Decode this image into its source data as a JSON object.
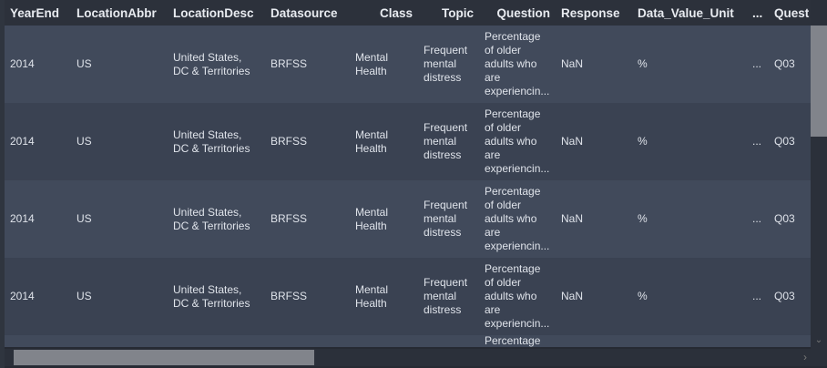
{
  "columns": [
    {
      "label": "YearEnd",
      "align": "left"
    },
    {
      "label": "LocationAbbr",
      "align": "left"
    },
    {
      "label": "LocationDesc",
      "align": "left"
    },
    {
      "label": "Datasource",
      "align": "left"
    },
    {
      "label": "Class",
      "align": "right"
    },
    {
      "label": "Topic",
      "align": "right"
    },
    {
      "label": "Question",
      "align": "right"
    },
    {
      "label": "Response",
      "align": "left"
    },
    {
      "label": "Data_Value_Unit",
      "align": "left"
    },
    {
      "label": "...",
      "align": "left"
    },
    {
      "label": "Quest",
      "align": "left"
    }
  ],
  "rows": [
    [
      "2014",
      "US",
      "United States, DC & Territories",
      "BRFSS",
      "Mental Health",
      "Frequent mental distress",
      "Percentage of older adults who are experiencin...",
      "NaN",
      "%",
      "...",
      "Q03"
    ],
    [
      "2014",
      "US",
      "United States, DC & Territories",
      "BRFSS",
      "Mental Health",
      "Frequent mental distress",
      "Percentage of older adults who are experiencin...",
      "NaN",
      "%",
      "...",
      "Q03"
    ],
    [
      "2014",
      "US",
      "United States, DC & Territories",
      "BRFSS",
      "Mental Health",
      "Frequent mental distress",
      "Percentage of older adults who are experiencin...",
      "NaN",
      "%",
      "...",
      "Q03"
    ],
    [
      "2014",
      "US",
      "United States, DC & Territories",
      "BRFSS",
      "Mental Health",
      "Frequent mental distress",
      "Percentage of older adults who are experiencin...",
      "NaN",
      "%",
      "...",
      "Q03"
    ],
    [
      "",
      "",
      "",
      "",
      "",
      "",
      "Percentage",
      "",
      "",
      "",
      ""
    ]
  ],
  "scrollbars": {
    "vertical_icon": "chevron-down-icon",
    "horizontal_icon": "chevron-right-icon"
  }
}
